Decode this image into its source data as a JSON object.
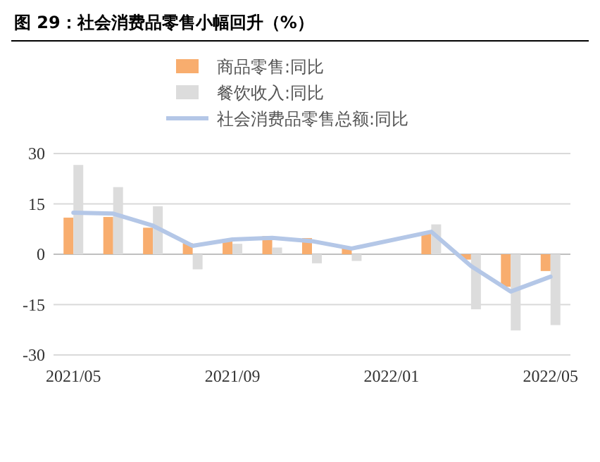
{
  "chart_data": {
    "type": "bar",
    "title": "图 29：社会消费品零售小幅回升（%）",
    "categories": [
      "2021/05",
      null,
      null,
      null,
      "2021/09",
      null,
      null,
      null,
      "2022/01",
      null,
      null,
      null,
      "2022/05"
    ],
    "series": [
      {
        "name": "商品零售:同比",
        "color": "#f8ad6e",
        "values": [
          10.9,
          11.1,
          7.9,
          3.3,
          4.5,
          5.4,
          4.8,
          2.1,
          null,
          6.5,
          -1.6,
          -9.7,
          -5.0
        ]
      },
      {
        "name": "餐饮收入:同比",
        "color": "#dcdcdc",
        "values": [
          26.6,
          20.0,
          14.3,
          -4.5,
          3.1,
          2.0,
          -2.7,
          -2.0,
          null,
          8.9,
          -16.4,
          -22.7,
          -21.1
        ]
      },
      {
        "name": "社会消费品零售总额:同比",
        "type": "line",
        "color": "#b4c7e7",
        "values": [
          12.4,
          12.1,
          8.5,
          2.5,
          4.4,
          4.9,
          3.9,
          1.7,
          null,
          6.7,
          -3.5,
          -11.1,
          -6.7
        ]
      }
    ],
    "ylim": [
      -30,
      30
    ],
    "yticks": [
      -30,
      -15,
      0,
      15,
      30
    ],
    "grid": "y",
    "legend": "top"
  }
}
